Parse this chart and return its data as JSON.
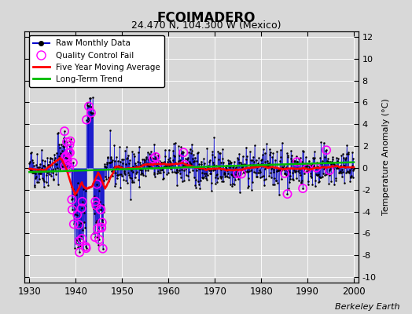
{
  "title": "FCOIMADERO",
  "subtitle": "24.470 N, 104.300 W (Mexico)",
  "ylabel": "Temperature Anomaly (°C)",
  "attribution": "Berkeley Earth",
  "xlim": [
    1929,
    2001
  ],
  "ylim": [
    -10.5,
    12.5
  ],
  "yticks": [
    -10,
    -8,
    -6,
    -4,
    -2,
    0,
    2,
    4,
    6,
    8,
    10,
    12
  ],
  "xticks": [
    1930,
    1940,
    1950,
    1960,
    1970,
    1980,
    1990,
    2000
  ],
  "bg_color": "#d8d8d8",
  "plot_bg": "#d8d8d8",
  "raw_color": "#0000cc",
  "qc_color": "#ff00ff",
  "ma_color": "#ff0000",
  "trend_color": "#00bb00",
  "seed": 42
}
